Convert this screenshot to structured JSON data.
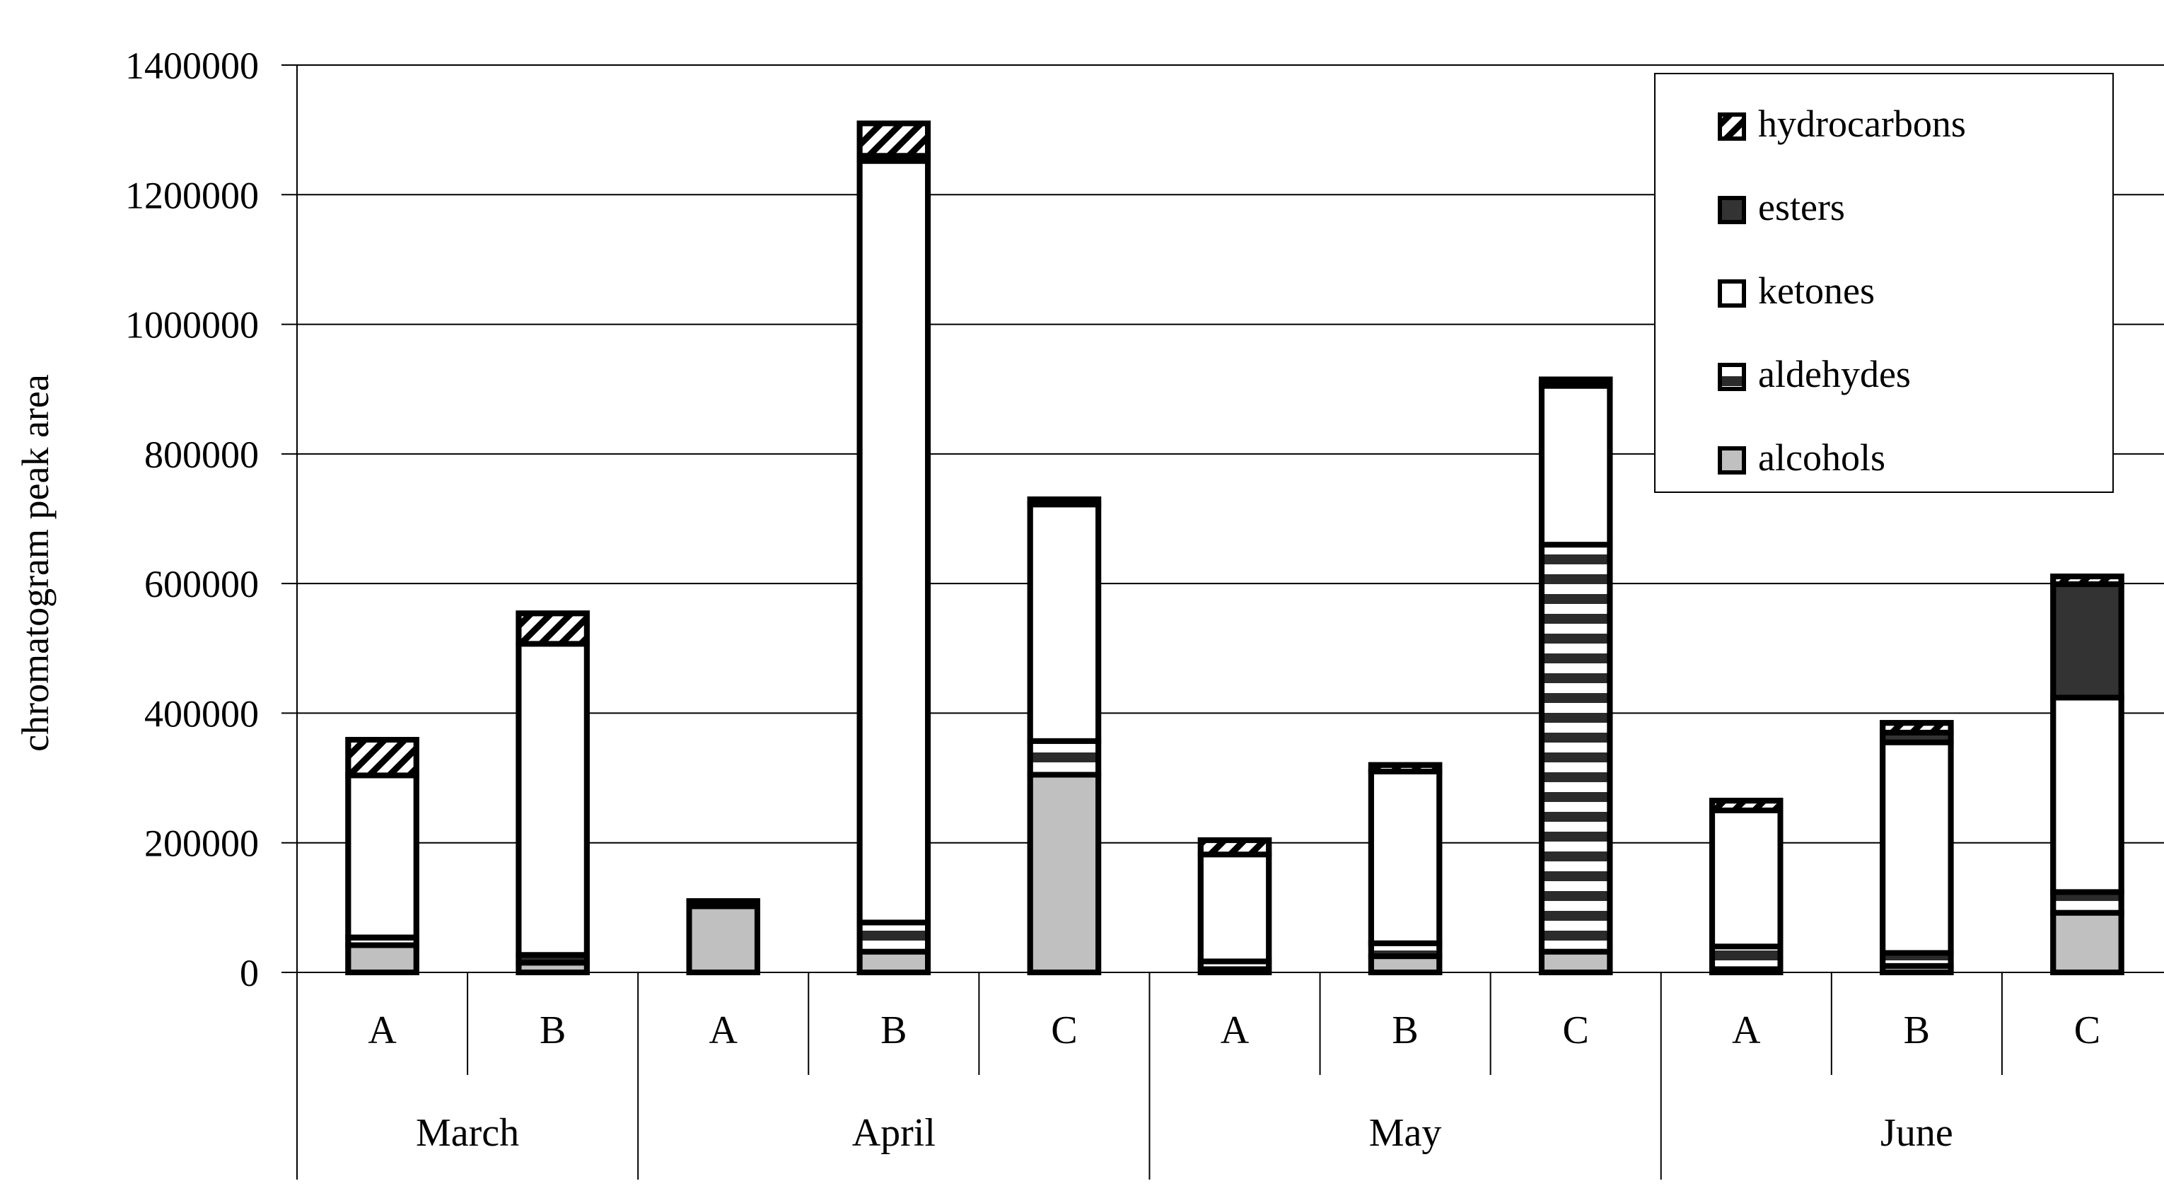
{
  "chart_data": {
    "type": "bar",
    "stacked": true,
    "title": "",
    "ylabel": "chromatogram peak area",
    "xlabel": "",
    "ylim": [
      0,
      1400000
    ],
    "y_ticks": [
      "0",
      "200000",
      "400000",
      "600000",
      "800000",
      "1000000",
      "1200000",
      "1400000"
    ],
    "grid": true,
    "legend_position": "top-right",
    "groups": [
      {
        "label": "March",
        "categories": [
          "A",
          "B"
        ]
      },
      {
        "label": "April",
        "categories": [
          "A",
          "B",
          "C"
        ]
      },
      {
        "label": "May",
        "categories": [
          "A",
          "B",
          "C"
        ]
      },
      {
        "label": "June",
        "categories": [
          "A",
          "B",
          "C"
        ]
      }
    ],
    "categories": [
      "A",
      "B",
      "A",
      "B",
      "C",
      "A",
      "B",
      "C",
      "A",
      "B",
      "C"
    ],
    "legend_order": [
      "hydrocarbons",
      "esters",
      "ketones",
      "aldehydes",
      "alcohols"
    ],
    "series": [
      {
        "name": "alcohols",
        "pattern": "solid-gray",
        "color": "#c0c0c0",
        "values": [
          42000,
          15000,
          102000,
          32000,
          305000,
          5000,
          25000,
          32000,
          5000,
          10000,
          92000
        ]
      },
      {
        "name": "aldehydes",
        "pattern": "horizontal-stripes",
        "color": "#2b2b2b",
        "values": [
          12000,
          12000,
          8000,
          45000,
          52000,
          12000,
          20000,
          628000,
          35000,
          20000,
          32000
        ]
      },
      {
        "name": "ketones",
        "pattern": "white",
        "color": "#ffffff",
        "values": [
          250000,
          480000,
          0,
          1175000,
          365000,
          165000,
          265000,
          245000,
          210000,
          325000,
          300000
        ]
      },
      {
        "name": "esters",
        "pattern": "solid-dark",
        "color": "#333333",
        "values": [
          0,
          0,
          0,
          8000,
          8000,
          0,
          0,
          5000,
          0,
          15000,
          175000
        ]
      },
      {
        "name": "hydrocarbons",
        "pattern": "diagonal-hatch",
        "color": "#000000",
        "values": [
          55000,
          47000,
          0,
          50000,
          0,
          22000,
          10000,
          5000,
          15000,
          15000,
          12000
        ]
      }
    ]
  }
}
